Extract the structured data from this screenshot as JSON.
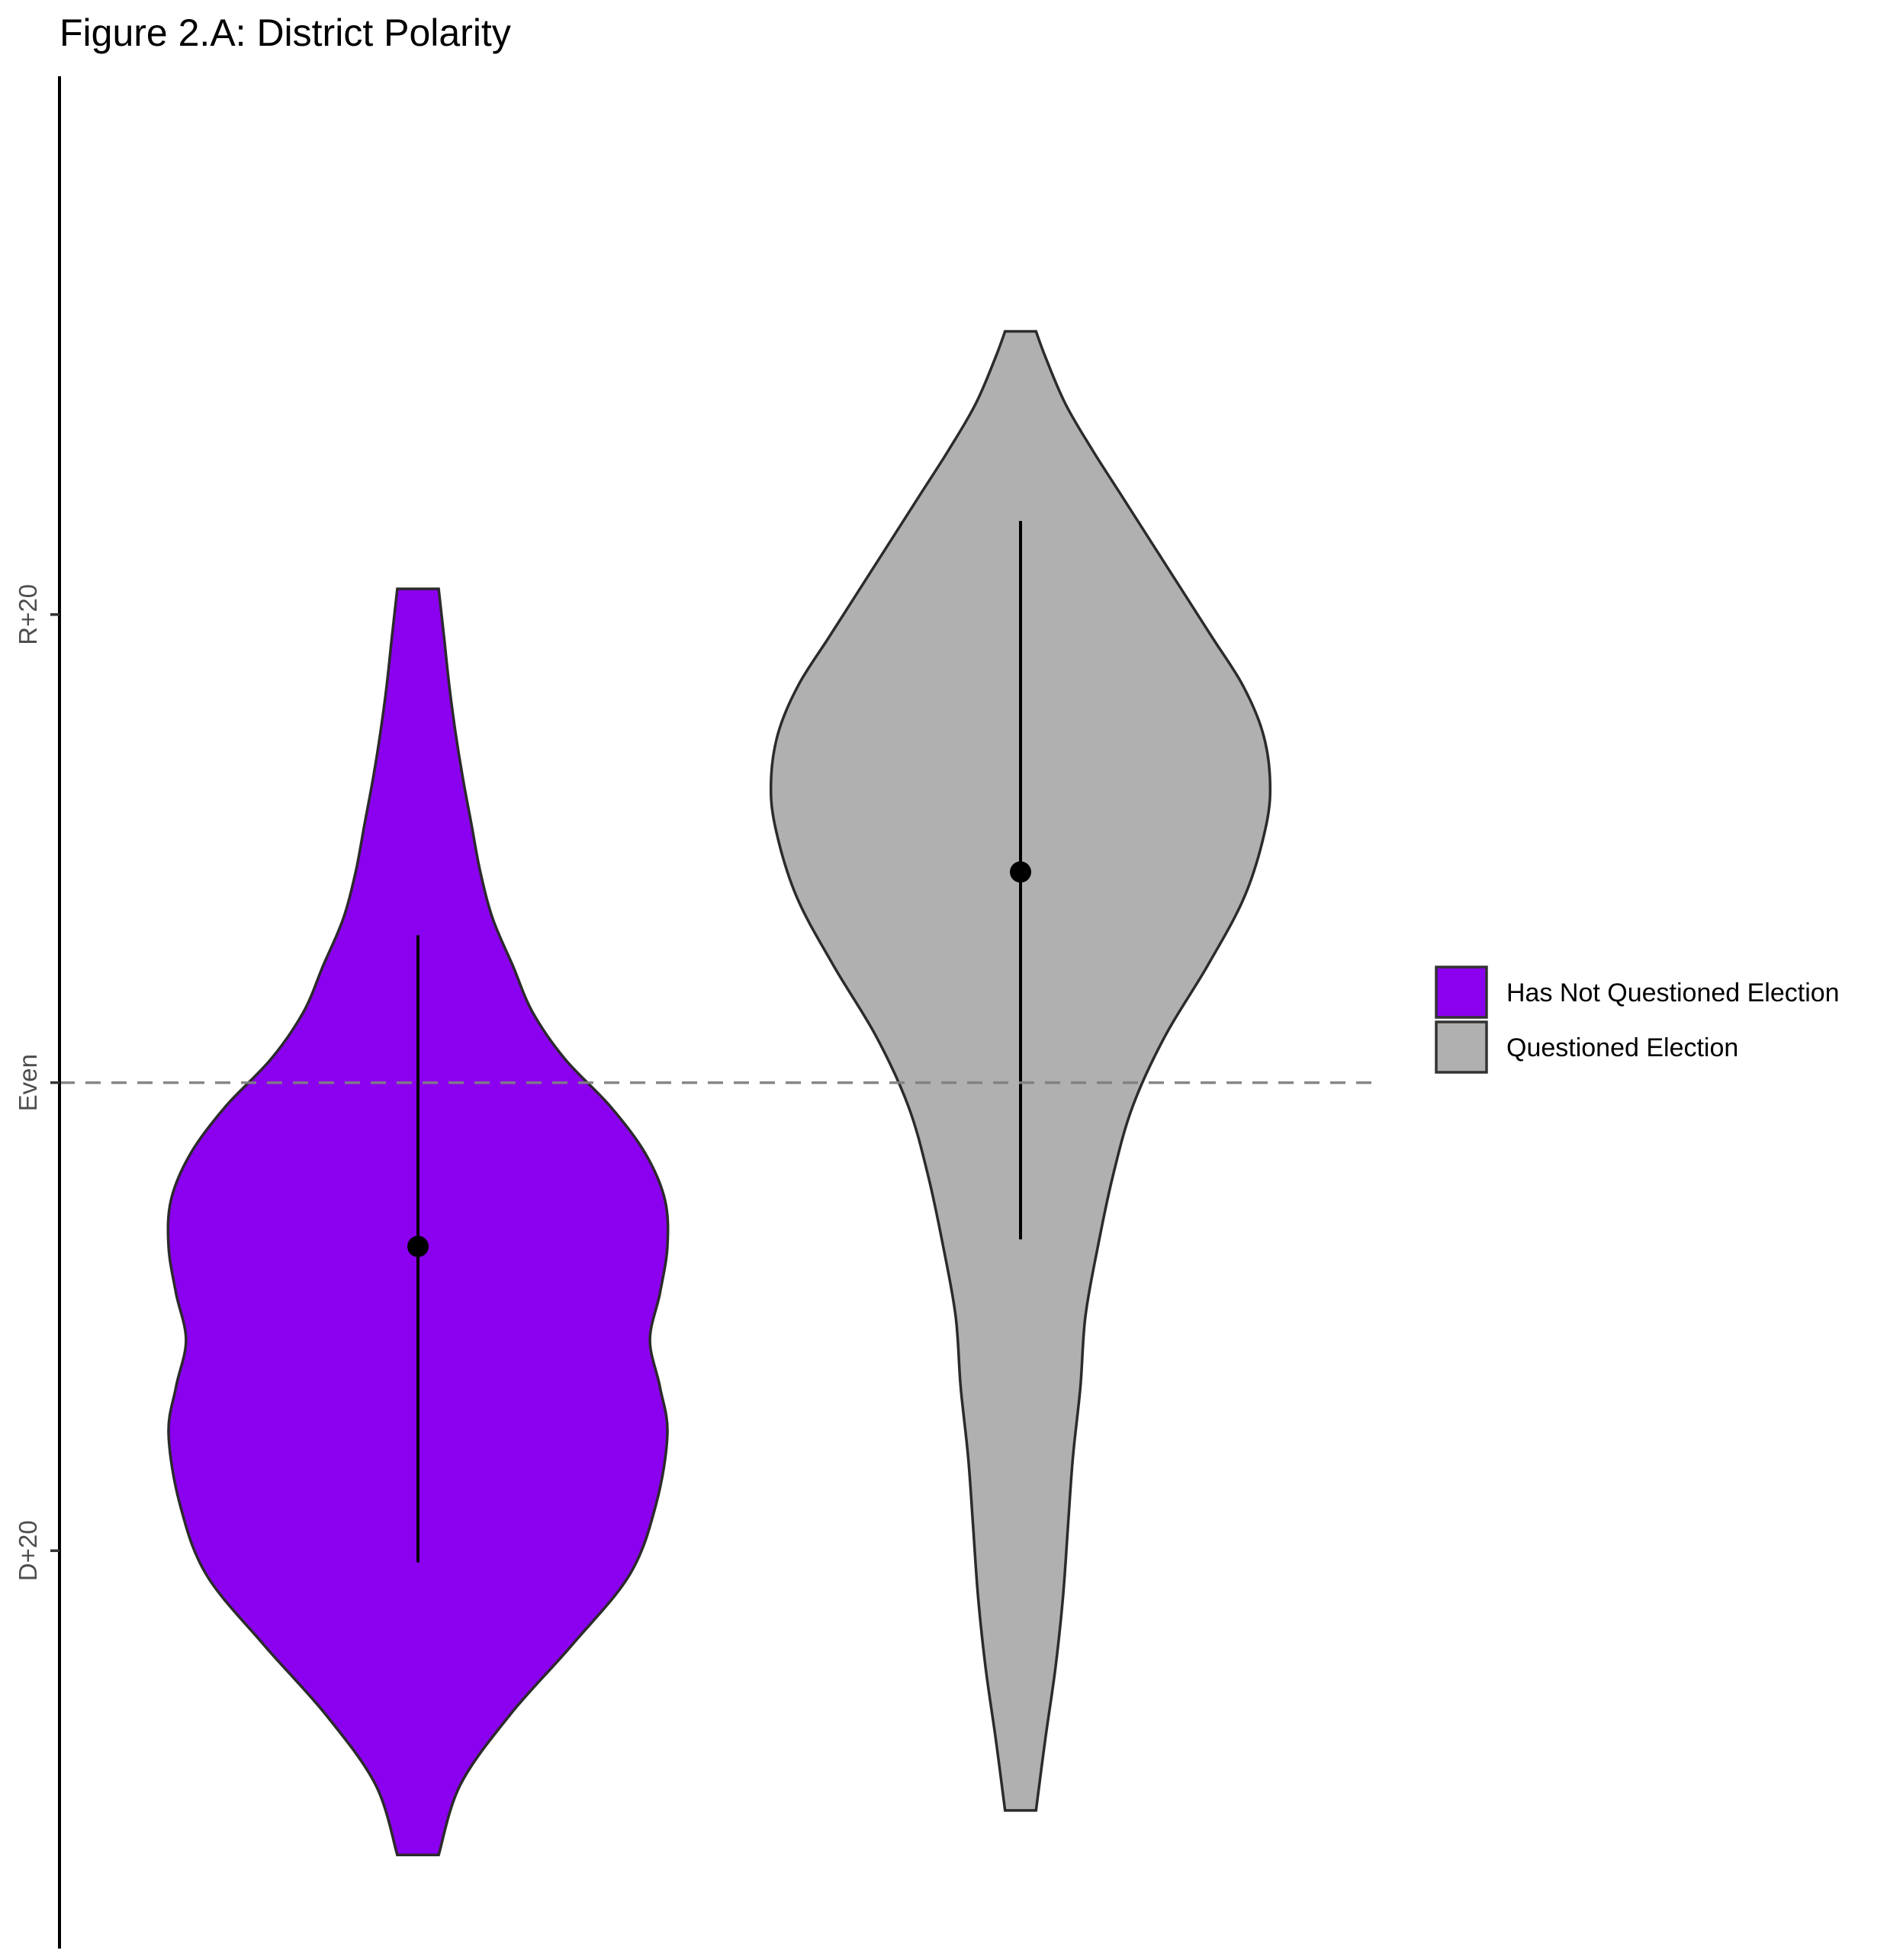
{
  "chart_data": {
    "type": "violin",
    "title": "Figure 2.A: District Polarity",
    "xlabel": "",
    "ylabel": "",
    "ylim": [
      -37,
      43
    ],
    "y_ticks": [
      {
        "value": 20,
        "label": "R+20"
      },
      {
        "value": 0,
        "label": "Even"
      },
      {
        "value": -20,
        "label": "D+20"
      }
    ],
    "reference_line": {
      "value": 0,
      "style": "dashed",
      "color": "#7f7f7f"
    },
    "grid": false,
    "legend": {
      "placement": "right",
      "entries": [
        {
          "label": "Has Not Questioned Election",
          "color": "#8b00ee"
        },
        {
          "label": "Questioned Election",
          "color": "#b0b0b0"
        }
      ]
    },
    "series": [
      {
        "legend_index": 0,
        "color": "#8b00ee",
        "position": 1,
        "point": -7.0,
        "range": [
          -20.5,
          6.3
        ],
        "ymin": -33.0,
        "ymax": 21.1,
        "density": [
          [
            -33.0,
            0.083
          ],
          [
            -30.0,
            0.17
          ],
          [
            -27.0,
            0.37
          ],
          [
            -24.0,
            0.62
          ],
          [
            -21.0,
            0.85
          ],
          [
            -18.0,
            0.955
          ],
          [
            -15.0,
            1.0
          ],
          [
            -13.0,
            0.97
          ],
          [
            -11.0,
            0.93
          ],
          [
            -9.0,
            0.97
          ],
          [
            -7.0,
            1.0
          ],
          [
            -5.0,
            0.99
          ],
          [
            -3.0,
            0.91
          ],
          [
            -1.0,
            0.77
          ],
          [
            1.0,
            0.59
          ],
          [
            3.0,
            0.46
          ],
          [
            5.0,
            0.38
          ],
          [
            7.0,
            0.3
          ],
          [
            9.0,
            0.25
          ],
          [
            11.0,
            0.215
          ],
          [
            13.0,
            0.18
          ],
          [
            15.0,
            0.15
          ],
          [
            17.0,
            0.125
          ],
          [
            19.0,
            0.105
          ],
          [
            21.1,
            0.083
          ]
        ]
      },
      {
        "legend_index": 1,
        "color": "#b0b0b0",
        "position": 2,
        "point": 9.0,
        "range": [
          -6.7,
          24.0
        ],
        "ymin": -31.1,
        "ymax": 32.1,
        "density": [
          [
            -31.1,
            0.062
          ],
          [
            -28.0,
            0.1
          ],
          [
            -25.0,
            0.14
          ],
          [
            -22.0,
            0.17
          ],
          [
            -19.0,
            0.19
          ],
          [
            -16.0,
            0.21
          ],
          [
            -13.0,
            0.24
          ],
          [
            -10.0,
            0.26
          ],
          [
            -7.0,
            0.31
          ],
          [
            -4.0,
            0.37
          ],
          [
            -1.0,
            0.45
          ],
          [
            2.0,
            0.58
          ],
          [
            5.0,
            0.75
          ],
          [
            8.0,
            0.9
          ],
          [
            11.0,
            0.985
          ],
          [
            13.0,
            1.0
          ],
          [
            15.0,
            0.97
          ],
          [
            17.0,
            0.89
          ],
          [
            19.0,
            0.77
          ],
          [
            21.0,
            0.65
          ],
          [
            23.0,
            0.53
          ],
          [
            25.0,
            0.41
          ],
          [
            27.0,
            0.29
          ],
          [
            29.0,
            0.18
          ],
          [
            31.0,
            0.1
          ],
          [
            32.1,
            0.062
          ]
        ]
      }
    ]
  }
}
